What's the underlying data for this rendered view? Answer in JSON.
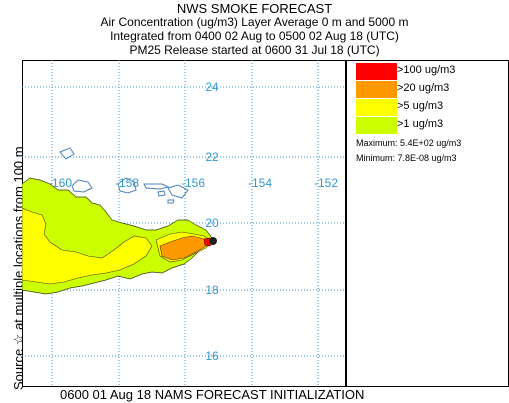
{
  "header": {
    "title": "NWS SMOKE FORECAST",
    "line2": "Air Concentration (ug/m3) Layer Average    0 m and  5000 m",
    "line3": "Integrated from 0400 02 Aug to 0500 02 Aug 18 (UTC)",
    "line4": "PM25 Release started at 0600 31 Jul 18 (UTC)"
  },
  "side_label": "Source ☆   at multiple locations     from   100 m",
  "footer": "0600 01 Aug 18 NAMS FORECAST INITIALIZATION",
  "map": {
    "lon_labels": [
      "-160",
      "-158",
      "-156",
      "-154",
      "-152"
    ],
    "lat_labels": [
      "24",
      "22",
      "20",
      "18",
      "16"
    ],
    "grid_color": "#3399cc",
    "label_color": "#3399cc",
    "coast_color": "#4a84b8"
  },
  "legend": {
    "items": [
      {
        "label": ">100 ug/m3",
        "color": "#ff0000"
      },
      {
        "label": ">20 ug/m3",
        "color": "#ff9900"
      },
      {
        "label": ">5 ug/m3",
        "color": "#ffff00"
      },
      {
        "label": ">1 ug/m3",
        "color": "#ccff00"
      }
    ],
    "maximum": "Maximum: 5.4E+02 ug/m3",
    "minimum": "Minimum: 7.8E-08 ug/m3"
  }
}
